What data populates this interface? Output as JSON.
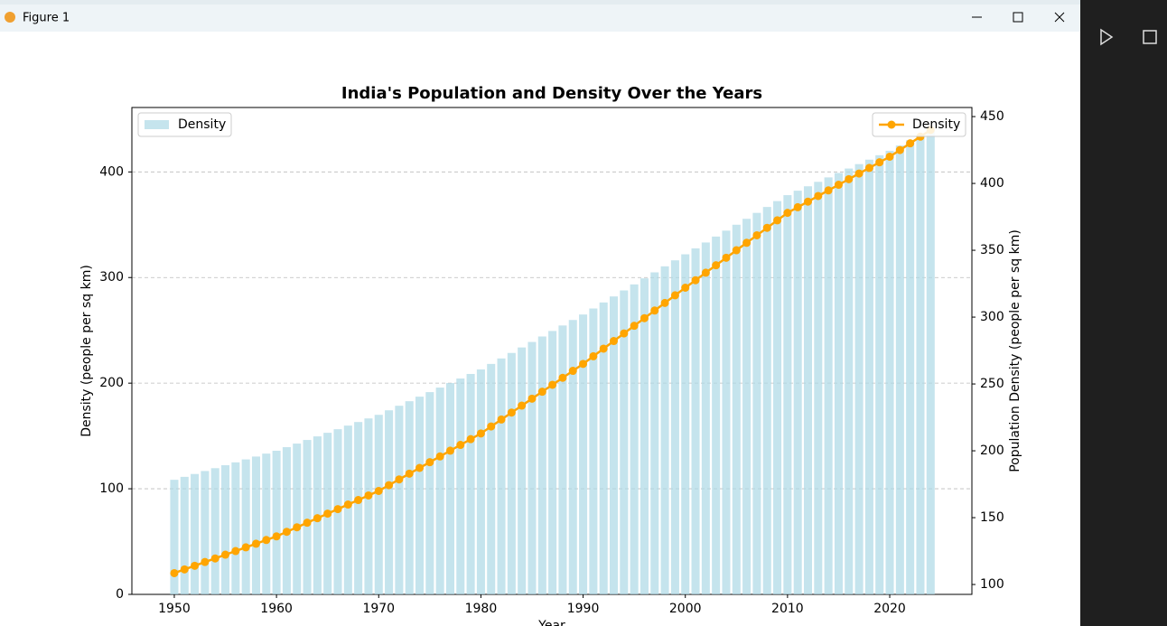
{
  "window": {
    "title": "Figure 1"
  },
  "chart_data": {
    "type": "combo",
    "title": "India's Population and Density Over the Years",
    "xlabel": "Year",
    "ylabel": "Density (people per sq km)",
    "y2label": "Population Density (people per sq km)",
    "x": [
      1950,
      1951,
      1952,
      1953,
      1954,
      1955,
      1956,
      1957,
      1958,
      1959,
      1960,
      1961,
      1962,
      1963,
      1964,
      1965,
      1966,
      1967,
      1968,
      1969,
      1970,
      1971,
      1972,
      1973,
      1974,
      1975,
      1976,
      1977,
      1978,
      1979,
      1980,
      1981,
      1982,
      1983,
      1984,
      1985,
      1986,
      1987,
      1988,
      1989,
      1990,
      1991,
      1992,
      1993,
      1994,
      1995,
      1996,
      1997,
      1998,
      1999,
      2000,
      2001,
      2002,
      2003,
      2004,
      2005,
      2006,
      2007,
      2008,
      2009,
      2010,
      2011,
      2012,
      2013,
      2014,
      2015,
      2016,
      2017,
      2018,
      2019,
      2020,
      2021,
      2022,
      2023,
      2024
    ],
    "series": [
      {
        "name": "Density",
        "type": "bar",
        "axis": "y",
        "color": "#add8e6",
        "legend": "upper left",
        "values": [
          108.5,
          111.3,
          114.0,
          116.8,
          119.5,
          122.3,
          125.0,
          127.8,
          130.5,
          133.3,
          136.0,
          139.4,
          142.8,
          146.2,
          149.6,
          153.0,
          156.4,
          159.8,
          163.2,
          166.6,
          170.0,
          174.3,
          178.6,
          182.9,
          187.2,
          191.5,
          195.8,
          200.1,
          204.4,
          208.7,
          213.0,
          218.2,
          223.4,
          228.6,
          233.8,
          239.0,
          244.2,
          249.4,
          254.6,
          259.8,
          265.0,
          270.7,
          276.4,
          282.1,
          287.8,
          293.5,
          299.2,
          304.9,
          310.6,
          316.3,
          322.0,
          327.6,
          333.2,
          338.8,
          344.4,
          350.0,
          355.6,
          361.2,
          366.8,
          372.4,
          378.0,
          382.2,
          386.4,
          390.6,
          394.8,
          399.0,
          403.2,
          407.4,
          411.6,
          415.8,
          420.0,
          425.0,
          430.0,
          435.0,
          440.0
        ]
      },
      {
        "name": "Density",
        "type": "line",
        "axis": "y2",
        "color": "#ffa500",
        "legend": "upper right",
        "values": [
          108.5,
          111.3,
          114.0,
          116.8,
          119.5,
          122.3,
          125.0,
          127.8,
          130.5,
          133.3,
          136.0,
          139.4,
          142.8,
          146.2,
          149.6,
          153.0,
          156.4,
          159.8,
          163.2,
          166.6,
          170.0,
          174.3,
          178.6,
          182.9,
          187.2,
          191.5,
          195.8,
          200.1,
          204.4,
          208.7,
          213.0,
          218.2,
          223.4,
          228.6,
          233.8,
          239.0,
          244.2,
          249.4,
          254.6,
          259.8,
          265.0,
          270.7,
          276.4,
          282.1,
          287.8,
          293.5,
          299.2,
          304.9,
          310.6,
          316.3,
          322.0,
          327.6,
          333.2,
          338.8,
          344.4,
          350.0,
          355.6,
          361.2,
          366.8,
          372.4,
          378.0,
          382.2,
          386.4,
          390.6,
          394.8,
          399.0,
          403.2,
          407.4,
          411.6,
          415.8,
          420.0,
          425.0,
          430.0,
          435.0,
          440.0
        ]
      }
    ],
    "xlim": [
      1945.85,
      2028.04
    ],
    "xticks": [
      1950,
      1960,
      1970,
      1980,
      1990,
      2000,
      2010,
      2020
    ],
    "ylim": [
      0,
      461
    ],
    "yticks": [
      0,
      100,
      200,
      300,
      400
    ],
    "y2lim": [
      92.6,
      456.8
    ],
    "y2ticks": [
      100,
      150,
      200,
      250,
      300,
      350,
      400,
      450
    ],
    "grid": true
  }
}
